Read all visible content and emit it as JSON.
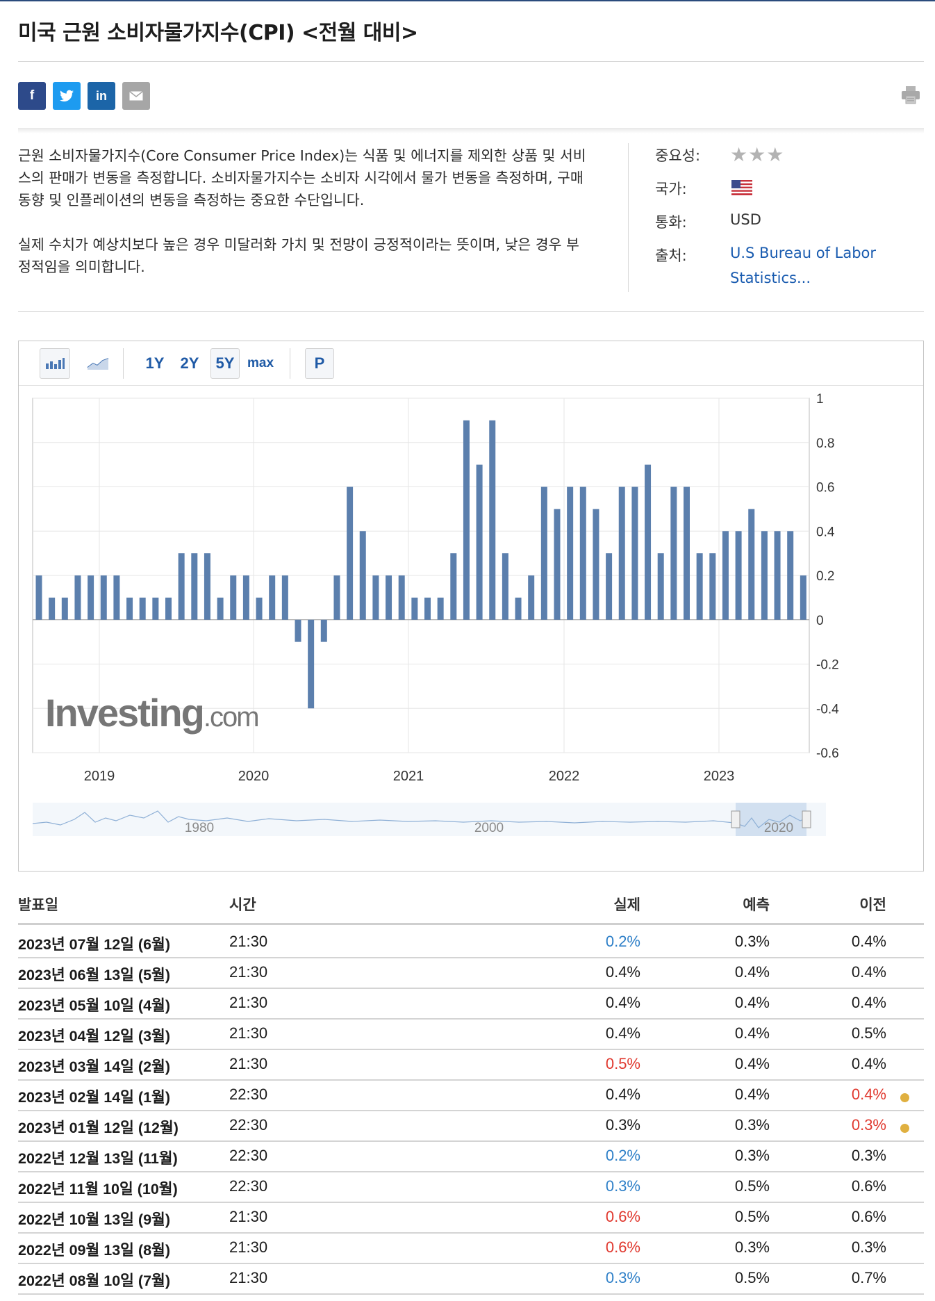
{
  "page": {
    "title": "미국 근원 소비자물가지수(CPI) <전월 대비>",
    "share_icons": [
      {
        "name": "facebook-icon",
        "glyph": "f",
        "color": "#2d4a8a"
      },
      {
        "name": "twitter-icon",
        "glyph": "🐦",
        "color": "#1d9bf0"
      },
      {
        "name": "linkedin-icon",
        "glyph": "in",
        "color": "#1c65a8"
      },
      {
        "name": "email-icon",
        "glyph": "✉",
        "color": "#a6a6a6"
      }
    ]
  },
  "description": {
    "para1": "근원 소비자물가지수(Core Consumer Price Index)는 식품 및 에너지를 제외한 상품 및 서비스의 판매가 변동을 측정합니다. 소비자물가지수는 소비자 시각에서 물가 변동을 측정하며, 구매 동향 및 인플레이션의 변동을 측정하는 중요한 수단입니다.",
    "para2": "실제 수치가 예상치보다 높은 경우 미달러화 가치 및 전망이 긍정적이라는 뜻이며, 낮은 경우 부정적임을 의미합니다."
  },
  "meta": {
    "importance_label": "중요성:",
    "importance_stars": "★★★",
    "country_label": "국가:",
    "country_flag": "us-flag-icon",
    "currency_label": "통화:",
    "currency_value": "USD",
    "source_label": "출처:",
    "source_value_line1": "U.S Bureau of Labor",
    "source_value_line2": "Statistics..."
  },
  "chart_toolbar": {
    "bar_icon": "bar-chart-icon",
    "line_icon": "line-chart-icon",
    "ranges": [
      "1Y",
      "2Y",
      "5Y",
      "max"
    ],
    "selected_range": "5Y",
    "p_label": "P"
  },
  "chart_data": {
    "type": "bar",
    "title": "",
    "watermark": "Investing.com",
    "x_tick_labels": [
      "2019",
      "2020",
      "2021",
      "2022",
      "2023"
    ],
    "ylim": [
      -0.6,
      1
    ],
    "y_ticks": [
      1,
      0.8,
      0.6,
      0.4,
      0.2,
      0,
      -0.2,
      -0.4,
      -0.6
    ],
    "y_tick_labels": [
      "1",
      "0.8",
      "0.6",
      "0.4",
      "0.2",
      "0",
      "-0.2",
      "-0.4",
      "-0.6"
    ],
    "bar_color": "#5b7fad",
    "values": [
      0.2,
      0.1,
      0.1,
      0.2,
      0.2,
      0.2,
      0.2,
      0.1,
      0.1,
      0.1,
      0.1,
      0.3,
      0.3,
      0.3,
      0.1,
      0.2,
      0.2,
      0.1,
      0.2,
      0.2,
      -0.1,
      -0.4,
      -0.1,
      0.2,
      0.6,
      0.4,
      0.2,
      0.2,
      0.2,
      0.1,
      0.1,
      0.1,
      0.3,
      0.9,
      0.7,
      0.9,
      0.3,
      0.1,
      0.2,
      0.6,
      0.5,
      0.6,
      0.6,
      0.5,
      0.3,
      0.6,
      0.6,
      0.7,
      0.3,
      0.6,
      0.6,
      0.3,
      0.3,
      0.4,
      0.4,
      0.5,
      0.4,
      0.4,
      0.4,
      0.2
    ],
    "navigator_labels": [
      "1980",
      "2000",
      "2020"
    ]
  },
  "table": {
    "headers": {
      "date": "발표일",
      "time": "시간",
      "actual": "실제",
      "forecast": "예측",
      "previous": "이전"
    },
    "rows": [
      {
        "date": "2023년 07월 12일 (6월)",
        "time": "21:30",
        "actual": "0.2%",
        "actual_color": "#2f80c8",
        "forecast": "0.3%",
        "previous": "0.4%",
        "previous_color": "#1b1b1b",
        "revised": false
      },
      {
        "date": "2023년 06월 13일 (5월)",
        "time": "21:30",
        "actual": "0.4%",
        "actual_color": "#1b1b1b",
        "forecast": "0.4%",
        "previous": "0.4%",
        "previous_color": "#1b1b1b",
        "revised": false
      },
      {
        "date": "2023년 05월 10일 (4월)",
        "time": "21:30",
        "actual": "0.4%",
        "actual_color": "#1b1b1b",
        "forecast": "0.4%",
        "previous": "0.4%",
        "previous_color": "#1b1b1b",
        "revised": false
      },
      {
        "date": "2023년 04월 12일 (3월)",
        "time": "21:30",
        "actual": "0.4%",
        "actual_color": "#1b1b1b",
        "forecast": "0.4%",
        "previous": "0.5%",
        "previous_color": "#1b1b1b",
        "revised": false
      },
      {
        "date": "2023년 03월 14일 (2월)",
        "time": "21:30",
        "actual": "0.5%",
        "actual_color": "#e0382e",
        "forecast": "0.4%",
        "previous": "0.4%",
        "previous_color": "#1b1b1b",
        "revised": false
      },
      {
        "date": "2023년 02월 14일 (1월)",
        "time": "22:30",
        "actual": "0.4%",
        "actual_color": "#1b1b1b",
        "forecast": "0.4%",
        "previous": "0.4%",
        "previous_color": "#e0382e",
        "revised": true
      },
      {
        "date": "2023년 01월 12일 (12월)",
        "time": "22:30",
        "actual": "0.3%",
        "actual_color": "#1b1b1b",
        "forecast": "0.3%",
        "previous": "0.3%",
        "previous_color": "#e0382e",
        "revised": true
      },
      {
        "date": "2022년 12월 13일 (11월)",
        "time": "22:30",
        "actual": "0.2%",
        "actual_color": "#2f80c8",
        "forecast": "0.3%",
        "previous": "0.3%",
        "previous_color": "#1b1b1b",
        "revised": false
      },
      {
        "date": "2022년 11월 10일 (10월)",
        "time": "22:30",
        "actual": "0.3%",
        "actual_color": "#2f80c8",
        "forecast": "0.5%",
        "previous": "0.6%",
        "previous_color": "#1b1b1b",
        "revised": false
      },
      {
        "date": "2022년 10월 13일 (9월)",
        "time": "21:30",
        "actual": "0.6%",
        "actual_color": "#e0382e",
        "forecast": "0.5%",
        "previous": "0.6%",
        "previous_color": "#1b1b1b",
        "revised": false
      },
      {
        "date": "2022년 09월 13일 (8월)",
        "time": "21:30",
        "actual": "0.6%",
        "actual_color": "#e0382e",
        "forecast": "0.3%",
        "previous": "0.3%",
        "previous_color": "#1b1b1b",
        "revised": false
      },
      {
        "date": "2022년 08월 10일 (7월)",
        "time": "21:30",
        "actual": "0.3%",
        "actual_color": "#2f80c8",
        "forecast": "0.5%",
        "previous": "0.7%",
        "previous_color": "#1b1b1b",
        "revised": false
      }
    ]
  }
}
